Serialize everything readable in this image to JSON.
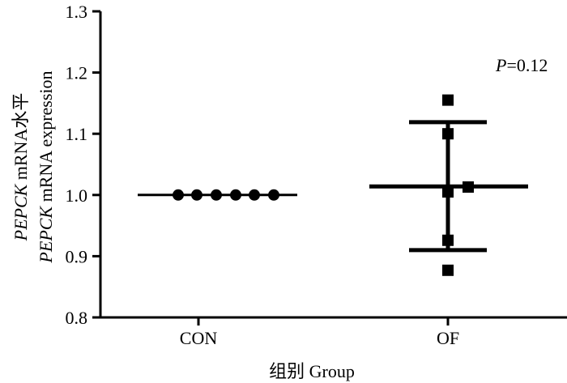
{
  "chart_data": {
    "type": "scatter",
    "categories": [
      "CON",
      "OF"
    ],
    "ylim": [
      0.8,
      1.3
    ],
    "yticks": [
      "0.8",
      "0.9",
      "1.0",
      "1.1",
      "1.2",
      "1.3"
    ],
    "xlabel": "组别  Group",
    "ylabel_line1_italic": "PEPCK",
    "ylabel_line1_rest": " mRNA水平",
    "ylabel_line2_italic": "PEPCK",
    "ylabel_line2_rest": " mRNA expression",
    "annotation_italic": "P",
    "annotation_rest": "=0.12",
    "series": [
      {
        "category": "CON",
        "marker": "circle",
        "values": [
          1.0,
          1.0,
          1.0,
          1.0,
          1.0,
          1.0
        ],
        "mean": 1.0,
        "sd_upper": 1.0,
        "sd_lower": 1.0
      },
      {
        "category": "OF",
        "marker": "square",
        "values": [
          1.155,
          1.1,
          1.005,
          1.013,
          0.926,
          0.877
        ],
        "mean": 1.014,
        "sd_upper": 1.119,
        "sd_lower": 0.91
      }
    ],
    "grid": false,
    "color": "#000000"
  }
}
